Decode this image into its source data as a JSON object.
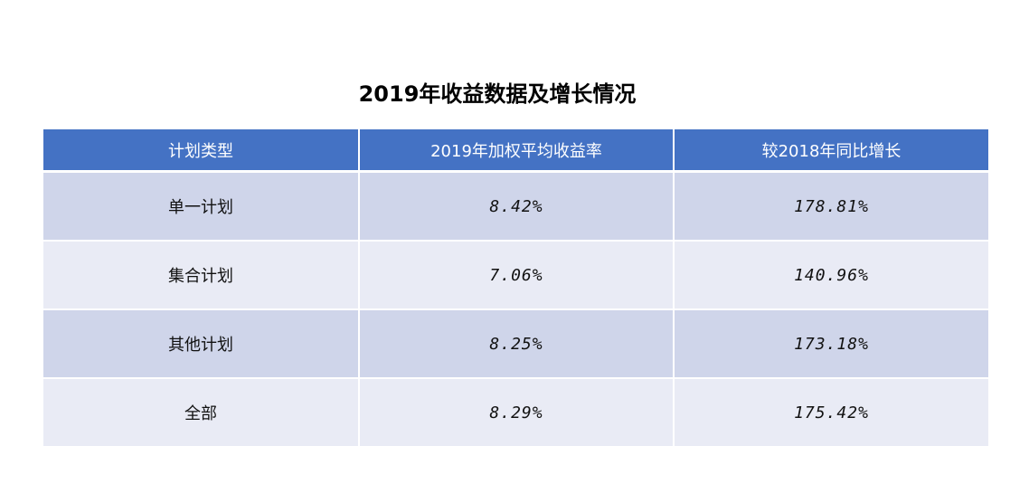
{
  "title": "2019年收益数据及增长情况",
  "table": {
    "headers": [
      "计划类型",
      "2019年加权平均收益率",
      "较2018年同比增长"
    ],
    "rows": [
      [
        "单一计划",
        "8.42%",
        "178.81%"
      ],
      [
        "集合计划",
        "7.06%",
        "140.96%"
      ],
      [
        "其他计划",
        "8.25%",
        "173.18%"
      ],
      [
        "全部",
        "8.29%",
        "175.42%"
      ]
    ]
  },
  "colors": {
    "header_bg": "#4472c4",
    "row_odd_bg": "#cfd5ea",
    "row_even_bg": "#e9ebf5",
    "header_text": "#ffffff"
  }
}
